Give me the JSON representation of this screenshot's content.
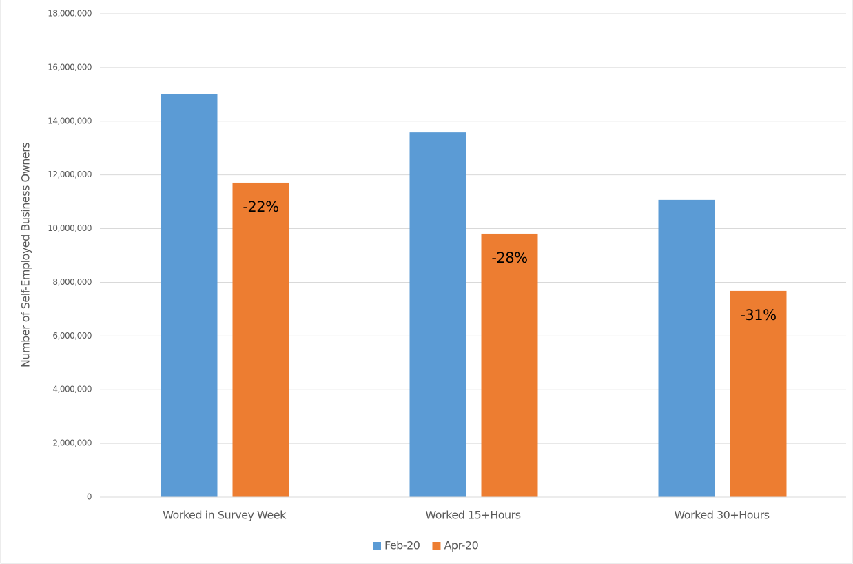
{
  "chart_data": {
    "type": "bar",
    "y_label": "Number of Self-Employed Business Owners",
    "categories": [
      "Worked in Survey Week",
      "Worked 15+Hours",
      "Worked 30+Hours"
    ],
    "series": [
      {
        "name": "Feb-20",
        "color": "#5b9bd5",
        "values": [
          15020000,
          13580000,
          11070000
        ]
      },
      {
        "name": "Apr-20",
        "color": "#ed7d31",
        "values": [
          11710000,
          9810000,
          7680000
        ]
      }
    ],
    "annotations": [
      "-22%",
      "-28%",
      "-31%"
    ],
    "ylim": [
      0,
      18000000
    ],
    "yticks": [
      0,
      {
        "value": 2000000,
        "label": "2,000,000"
      },
      {
        "value": 4000000,
        "label": "4,000,000"
      },
      {
        "value": 6000000,
        "label": "6,000,000"
      },
      {
        "value": 8000000,
        "label": "8,000,000"
      },
      {
        "value": 10000000,
        "label": "10,000,000"
      },
      {
        "value": 12000000,
        "label": "12,000,000"
      },
      {
        "value": 14000000,
        "label": "14,000,000"
      },
      {
        "value": 16000000,
        "label": "16,000,000"
      },
      {
        "value": 18000000,
        "label": "18,000,000"
      }
    ],
    "grid": true,
    "legend": "bottom"
  }
}
